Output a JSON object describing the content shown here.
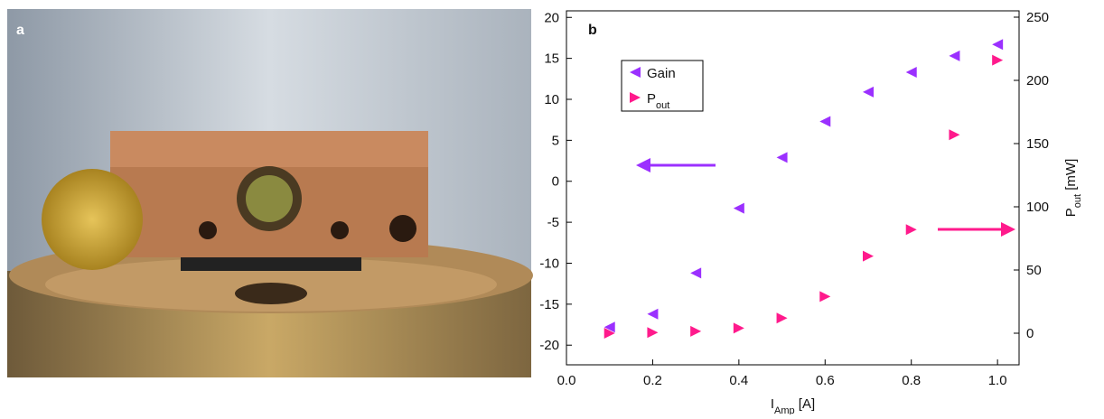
{
  "panel_labels": [
    "a",
    "b"
  ],
  "chart_data": {
    "type": "scatter",
    "x": [
      0.1,
      0.2,
      0.3,
      0.4,
      0.5,
      0.6,
      0.7,
      0.8,
      0.9,
      1.0
    ],
    "series": [
      {
        "name": "Gain",
        "color": "#9b30ff",
        "marker": "left-triangle",
        "axis": "y",
        "values": [
          -17.8,
          -16.2,
          -11.2,
          -3.3,
          2.9,
          7.3,
          10.9,
          13.3,
          15.3,
          16.7
        ]
      },
      {
        "name": "Pout",
        "color": "#ff1a8c",
        "marker": "right-triangle",
        "axis": "y2",
        "values": [
          0,
          0.5,
          1.5,
          4,
          12,
          29,
          61,
          82,
          157,
          216
        ]
      }
    ],
    "x_label": [
      "I",
      "Amp",
      " [A]"
    ],
    "y2_label": [
      "P",
      "out",
      " [mW]"
    ],
    "xlim": [
      0,
      1.05
    ],
    "xticks": [
      {
        "value": 0,
        "label": "0.0"
      },
      0.2,
      0.4,
      0.6,
      0.8,
      {
        "value": 1,
        "label": "1.0"
      }
    ],
    "ylim": [
      -22.4,
      20.8
    ],
    "yticks": [
      -20,
      -15,
      -10,
      -5,
      0,
      5,
      10,
      15,
      20
    ],
    "y2lim": [
      -25,
      255
    ],
    "y2ticks": [
      0,
      50,
      100,
      150,
      200,
      250
    ],
    "grid": false
  }
}
